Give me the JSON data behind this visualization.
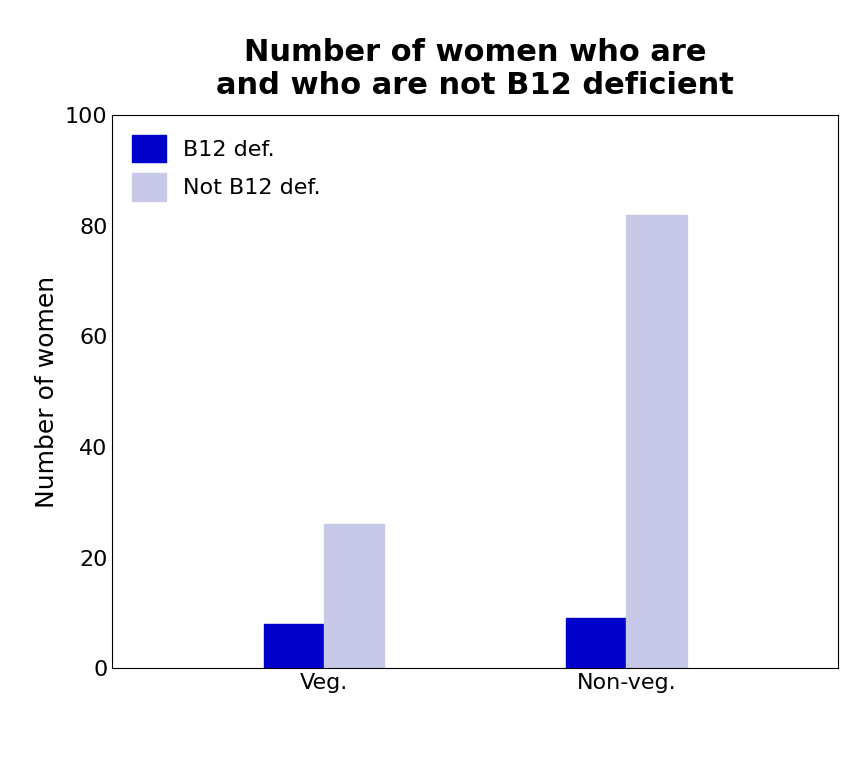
{
  "title": "Number of women who are\nand who are not B12 deficient",
  "ylabel": "Number of women",
  "categories": [
    "Veg.",
    "Non-veg."
  ],
  "series": [
    {
      "label": "B12 def.",
      "values": [
        8,
        9
      ],
      "color": "#0000CC"
    },
    {
      "label": "Not B12 def.",
      "values": [
        26,
        82
      ],
      "color": "#C8C8E8"
    }
  ],
  "ylim": [
    0,
    100
  ],
  "yticks": [
    0,
    20,
    40,
    60,
    80,
    100
  ],
  "bar_width": 0.2,
  "title_fontsize": 22,
  "axis_label_fontsize": 18,
  "tick_fontsize": 16,
  "legend_fontsize": 16,
  "background_color": "#ffffff"
}
